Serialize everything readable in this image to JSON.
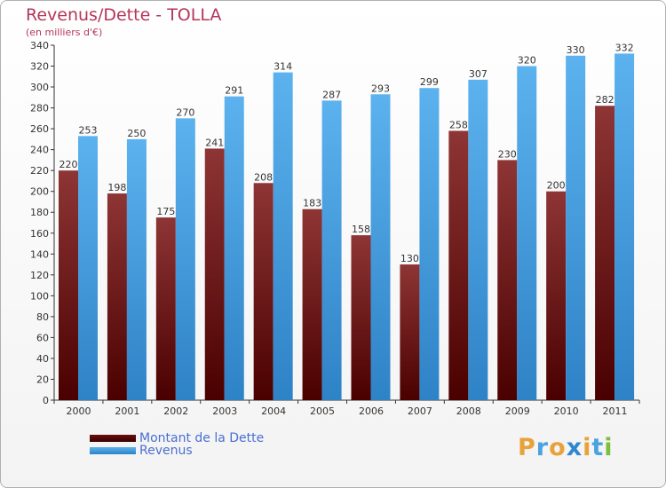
{
  "title": "Revenus/Dette - TOLLA",
  "subtitle": "(en milliers d'€)",
  "brand": {
    "text": "Proxiti",
    "letter_colors": [
      "#e8a23a",
      "#4aa3e0",
      "#e8a23a",
      "#2e88d0",
      "#e8a23a",
      "#4aa3e0",
      "#7cbf3c"
    ]
  },
  "chart_data": {
    "type": "bar",
    "title": "Revenus/Dette - TOLLA",
    "subtitle": "(en milliers d'€)",
    "categories": [
      "2000",
      "2001",
      "2002",
      "2003",
      "2004",
      "2005",
      "2006",
      "2007",
      "2008",
      "2009",
      "2010",
      "2011"
    ],
    "series": [
      {
        "name": "Montant de la Dette",
        "color": "#7a1a1a",
        "values": [
          220,
          198,
          175,
          241,
          208,
          183,
          158,
          130,
          258,
          230,
          200,
          282
        ]
      },
      {
        "name": "Revenus",
        "color": "#4ea6e6",
        "values": [
          253,
          250,
          270,
          291,
          314,
          287,
          293,
          299,
          307,
          320,
          330,
          332
        ]
      }
    ],
    "ylim": [
      0,
      340
    ],
    "ytick_step": 20,
    "grid": false,
    "legend": "bottom-left",
    "value_labels": true
  }
}
